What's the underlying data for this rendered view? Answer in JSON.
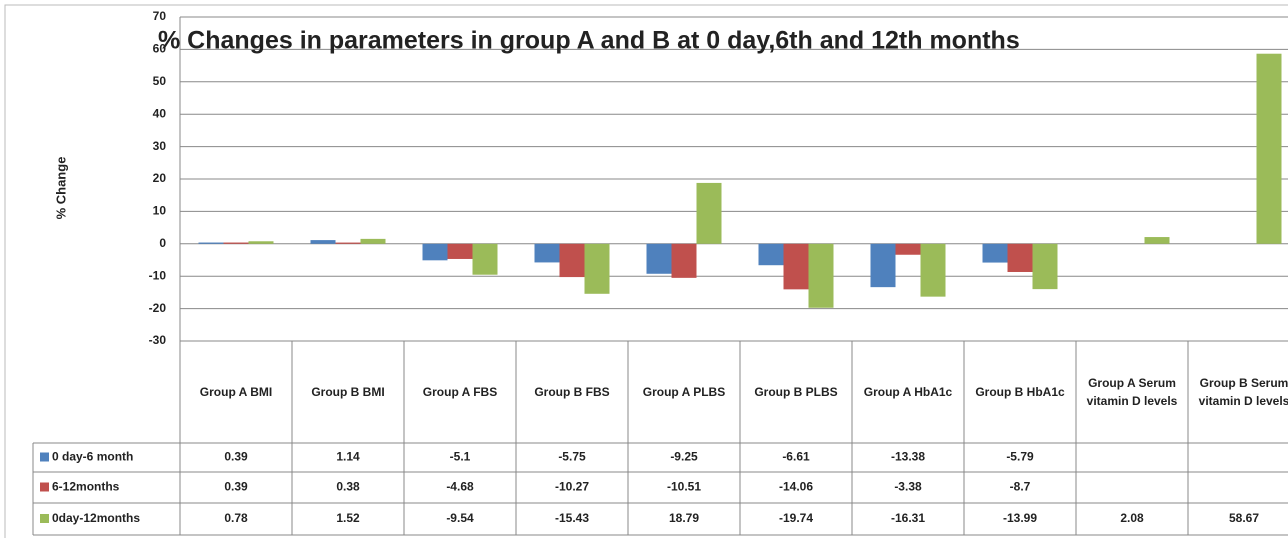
{
  "chart_data": {
    "type": "bar",
    "title": "% Changes in parameters in group A and B at 0 day,6th and 12th months",
    "y_label": "% Change",
    "categories": [
      "Group A BMI",
      "Group B BMI",
      "Group A FBS",
      "Group B FBS",
      "Group A PLBS",
      "Group B PLBS",
      "Group A HbA1c",
      "Group B HbA1c",
      "Group A Serum vitamin D levels",
      "Group B Serum vitamin D levels"
    ],
    "series": [
      {
        "name": "0 day-6 month",
        "color": "#4f81bd",
        "values": [
          0.39,
          1.14,
          -5.1,
          -5.75,
          -9.25,
          -6.61,
          -13.38,
          -5.79,
          null,
          null
        ]
      },
      {
        "name": "6-12months",
        "color": "#c0504d",
        "values": [
          0.39,
          0.38,
          -4.68,
          -10.27,
          -10.51,
          -14.06,
          -3.38,
          -8.7,
          null,
          null
        ]
      },
      {
        "name": "0day-12months",
        "color": "#9bbb59",
        "values": [
          0.78,
          1.52,
          -9.54,
          -15.43,
          18.79,
          -19.74,
          -16.31,
          -13.99,
          2.08,
          58.67
        ]
      }
    ],
    "ylim": [
      -30,
      70
    ],
    "yticks": [
      -30,
      -20,
      -10,
      0,
      10,
      20,
      30,
      40,
      50,
      60,
      70
    ],
    "grid": true
  }
}
